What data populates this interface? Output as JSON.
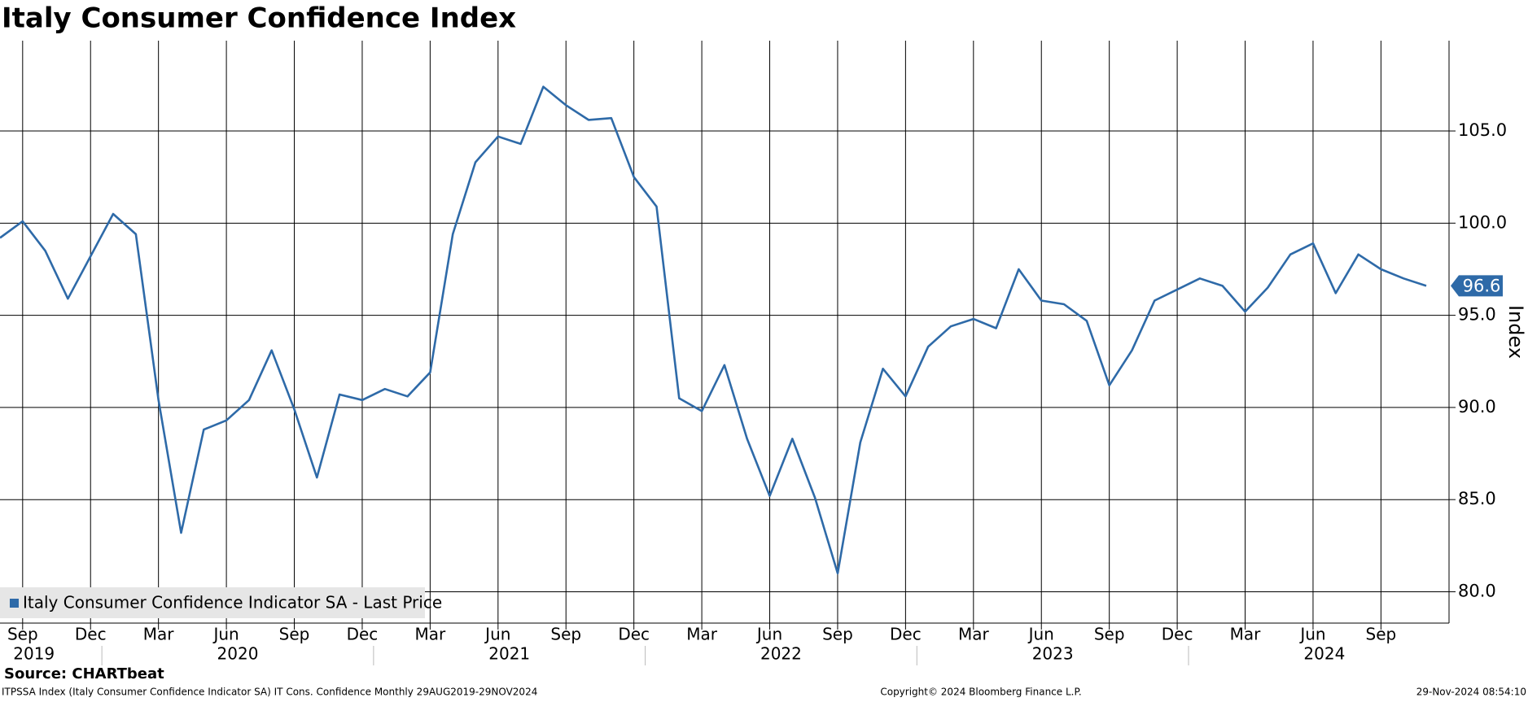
{
  "chart_data": {
    "type": "line",
    "title": "Italy Consumer Confidence Index",
    "y_label": "Index",
    "source": "Source: CHARTbeat",
    "footer_left": "ITPSSA Index (Italy Consumer Confidence Indicator SA) IT Cons. Confidence  Monthly 29AUG2019-29NOV2024",
    "footer_center": "Copyright© 2024 Bloomberg Finance L.P.",
    "footer_right": "29-Nov-2024 08:54:10",
    "x": [
      "2019-08",
      "2019-09",
      "2019-10",
      "2019-11",
      "2019-12",
      "2020-01",
      "2020-02",
      "2020-03",
      "2020-04",
      "2020-05",
      "2020-06",
      "2020-07",
      "2020-08",
      "2020-09",
      "2020-10",
      "2020-11",
      "2020-12",
      "2021-01",
      "2021-02",
      "2021-03",
      "2021-04",
      "2021-05",
      "2021-06",
      "2021-07",
      "2021-08",
      "2021-09",
      "2021-10",
      "2021-11",
      "2021-12",
      "2022-01",
      "2022-02",
      "2022-03",
      "2022-04",
      "2022-05",
      "2022-06",
      "2022-07",
      "2022-08",
      "2022-09",
      "2022-10",
      "2022-11",
      "2022-12",
      "2023-01",
      "2023-02",
      "2023-03",
      "2023-04",
      "2023-05",
      "2023-06",
      "2023-07",
      "2023-08",
      "2023-09",
      "2023-10",
      "2023-11",
      "2023-12",
      "2024-01",
      "2024-02",
      "2024-03",
      "2024-04",
      "2024-05",
      "2024-06",
      "2024-07",
      "2024-08",
      "2024-09",
      "2024-10",
      "2024-11"
    ],
    "series": [
      {
        "name": "Italy Consumer Confidence Indicator SA - Last Price",
        "color": "#2e6aa8",
        "values": [
          99.2,
          100.1,
          98.5,
          95.9,
          98.2,
          100.5,
          99.4,
          90.4,
          83.2,
          88.8,
          89.3,
          90.4,
          93.1,
          89.9,
          86.2,
          90.7,
          90.4,
          91.0,
          90.6,
          91.9,
          99.4,
          103.3,
          104.7,
          104.3,
          107.4,
          106.4,
          105.6,
          105.7,
          102.5,
          100.9,
          90.5,
          89.8,
          92.3,
          88.3,
          85.2,
          88.3,
          85.1,
          81.0,
          88.1,
          92.1,
          90.6,
          93.3,
          94.4,
          94.8,
          94.3,
          97.5,
          95.8,
          95.6,
          94.7,
          91.2,
          93.1,
          95.8,
          96.4,
          97.0,
          96.6,
          95.2,
          96.5,
          98.3,
          98.9,
          96.2,
          98.3,
          97.5,
          97.0,
          96.6
        ]
      }
    ],
    "ylim": [
      78.3,
      109.9
    ],
    "yticks": [
      {
        "value": 80,
        "label": "80.0"
      },
      {
        "value": 85,
        "label": "85.0"
      },
      {
        "value": 90,
        "label": "90.0"
      },
      {
        "value": 95,
        "label": "95.0"
      },
      {
        "value": 100,
        "label": "100.0"
      },
      {
        "value": 105,
        "label": "105.0"
      }
    ],
    "xticks": [
      {
        "value": "2019-09",
        "label": "Sep"
      },
      {
        "value": "2019-12",
        "label": "Dec"
      },
      {
        "value": "2020-03",
        "label": "Mar"
      },
      {
        "value": "2020-06",
        "label": "Jun"
      },
      {
        "value": "2020-09",
        "label": "Sep"
      },
      {
        "value": "2020-12",
        "label": "Dec"
      },
      {
        "value": "2021-03",
        "label": "Mar"
      },
      {
        "value": "2021-06",
        "label": "Jun"
      },
      {
        "value": "2021-09",
        "label": "Sep"
      },
      {
        "value": "2021-12",
        "label": "Dec"
      },
      {
        "value": "2022-03",
        "label": "Mar"
      },
      {
        "value": "2022-06",
        "label": "Jun"
      },
      {
        "value": "2022-09",
        "label": "Sep"
      },
      {
        "value": "2022-12",
        "label": "Dec"
      },
      {
        "value": "2023-03",
        "label": "Mar"
      },
      {
        "value": "2023-06",
        "label": "Jun"
      },
      {
        "value": "2023-09",
        "label": "Sep"
      },
      {
        "value": "2023-12",
        "label": "Dec"
      },
      {
        "value": "2024-03",
        "label": "Mar"
      },
      {
        "value": "2024-06",
        "label": "Jun"
      },
      {
        "value": "2024-09",
        "label": "Sep"
      }
    ],
    "years": [
      "2019",
      "2020",
      "2021",
      "2022",
      "2023",
      "2024"
    ],
    "grid": true
  }
}
